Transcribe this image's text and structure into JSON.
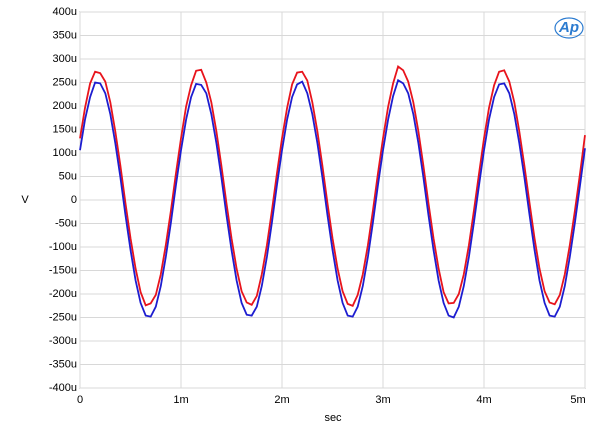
{
  "chart_data": {
    "type": "line",
    "logo": "Ap",
    "xlabel": "sec",
    "ylabel": "V",
    "x": [
      0,
      5e-05,
      0.0001,
      0.00015,
      0.0002,
      0.00025,
      0.0003,
      0.00035,
      0.0004,
      0.00045,
      0.0005,
      0.00055,
      0.0006,
      0.00065,
      0.0007,
      0.00075,
      0.0008,
      0.00085,
      0.0009,
      0.00095,
      0.001,
      0.00105,
      0.0011,
      0.00115,
      0.0012,
      0.00125,
      0.0013,
      0.00135,
      0.0014,
      0.00145,
      0.0015,
      0.00155,
      0.0016,
      0.00165,
      0.0017,
      0.00175,
      0.0018,
      0.00185,
      0.0019,
      0.00195,
      0.002,
      0.00205,
      0.0021,
      0.00215,
      0.0022,
      0.00225,
      0.0023,
      0.00235,
      0.0024,
      0.00245,
      0.0025,
      0.00255,
      0.0026,
      0.00265,
      0.0027,
      0.00275,
      0.0028,
      0.00285,
      0.0029,
      0.00295,
      0.003,
      0.00305,
      0.0031,
      0.00315,
      0.0032,
      0.00325,
      0.0033,
      0.00335,
      0.0034,
      0.00345,
      0.0035,
      0.00355,
      0.0036,
      0.00365,
      0.0037,
      0.00375,
      0.0038,
      0.00385,
      0.0039,
      0.00395,
      0.004,
      0.00405,
      0.0041,
      0.00415,
      0.0042,
      0.00425,
      0.0043,
      0.00435,
      0.0044,
      0.00445,
      0.0045,
      0.00455,
      0.0046,
      0.00465,
      0.0047,
      0.00475,
      0.0048,
      0.00485,
      0.0049,
      0.00495,
      0.005
    ],
    "series": [
      {
        "color": "#e8141c",
        "values": [
          0.000131,
          0.000196,
          0.000248,
          0.000273,
          0.00027,
          0.000252,
          0.000208,
          0.000146,
          7.3e-05,
          -6e-06,
          -8.1e-05,
          -0.000146,
          -0.000196,
          -0.000224,
          -0.00022,
          -0.000202,
          -0.000158,
          -9.6e-05,
          -2.3e-05,
          5.6e-05,
          0.000131,
          0.000199,
          0.000244,
          0.000275,
          0.000277,
          0.00025,
          0.000208,
          0.000146,
          7.3e-05,
          -6e-06,
          -8.1e-05,
          -0.000146,
          -0.000194,
          -0.000218,
          -0.000223,
          -0.000204,
          -0.000158,
          -9.6e-05,
          -2.3e-05,
          5.6e-05,
          0.000131,
          0.000196,
          0.000246,
          0.000271,
          0.000273,
          0.000254,
          0.000208,
          0.000146,
          7.3e-05,
          -6e-06,
          -8.1e-05,
          -0.000146,
          -0.000194,
          -0.000221,
          -0.000225,
          -0.000202,
          -0.000158,
          -9.6e-05,
          -2.3e-05,
          5.6e-05,
          0.000131,
          0.000198,
          0.000248,
          0.000284,
          0.000276,
          0.000252,
          0.000208,
          0.000146,
          7.3e-05,
          -6e-06,
          -8.1e-05,
          -0.000146,
          -0.000196,
          -0.00022,
          -0.000219,
          -0.0002,
          -0.000158,
          -9.6e-05,
          -2.3e-05,
          5.6e-05,
          0.000131,
          0.000196,
          0.000244,
          0.000273,
          0.000276,
          0.000252,
          0.000208,
          0.000146,
          7.3e-05,
          -6e-06,
          -8.1e-05,
          -0.000146,
          -0.000194,
          -0.000218,
          -0.000222,
          -0.000202,
          -0.000158,
          -9.6e-05,
          -2.3e-05,
          5.6e-05,
          0.000138
        ]
      },
      {
        "color": "#1d1dd0",
        "values": [
          0.000106,
          0.000171,
          0.000219,
          0.00025,
          0.000248,
          0.000227,
          0.000183,
          0.000121,
          4.8e-05,
          -3.1e-05,
          -0.000106,
          -0.000171,
          -0.000219,
          -0.000246,
          -0.000248,
          -0.000227,
          -0.000183,
          -0.000121,
          -4.8e-05,
          3.1e-05,
          0.000106,
          0.000171,
          0.000219,
          0.000247,
          0.000245,
          0.000227,
          0.000183,
          0.000121,
          4.8e-05,
          -3.1e-05,
          -0.000106,
          -0.000171,
          -0.000219,
          -0.000244,
          -0.000246,
          -0.000227,
          -0.000183,
          -0.000121,
          -4.8e-05,
          3.1e-05,
          0.000106,
          0.000171,
          0.000219,
          0.000246,
          0.000252,
          0.000227,
          0.000183,
          0.000121,
          4.8e-05,
          -3.1e-05,
          -0.000106,
          -0.000171,
          -0.000219,
          -0.000246,
          -0.000248,
          -0.000227,
          -0.000183,
          -0.000121,
          -4.8e-05,
          3.1e-05,
          0.000106,
          0.000171,
          0.000221,
          0.000255,
          0.000248,
          0.000227,
          0.000183,
          0.000121,
          4.8e-05,
          -3.1e-05,
          -0.000106,
          -0.000171,
          -0.000219,
          -0.000246,
          -0.00025,
          -0.000227,
          -0.000183,
          -0.000121,
          -4.8e-05,
          3.1e-05,
          0.000106,
          0.000171,
          0.000219,
          0.000246,
          0.000248,
          0.000227,
          0.000183,
          0.000121,
          4.8e-05,
          -3.1e-05,
          -0.000106,
          -0.000171,
          -0.000219,
          -0.000246,
          -0.000248,
          -0.000227,
          -0.000183,
          -0.000121,
          -4.8e-05,
          3.1e-05,
          0.00011
        ]
      }
    ],
    "xlim": [
      0,
      0.005
    ],
    "xticks": [
      0,
      {
        "value": 0.001,
        "label": "1m"
      },
      {
        "value": 0.002,
        "label": "2m"
      },
      {
        "value": 0.003,
        "label": "3m"
      },
      {
        "value": 0.004,
        "label": "4m"
      },
      {
        "value": 0.005,
        "label": "5m"
      }
    ],
    "ylim": [
      -0.0004,
      0.0004
    ],
    "yticks": [
      {
        "value": 0.0004,
        "label": "400u"
      },
      {
        "value": 0.00035,
        "label": "350u"
      },
      {
        "value": 0.0003,
        "label": "300u"
      },
      {
        "value": 0.00025,
        "label": "250u"
      },
      {
        "value": 0.0002,
        "label": "200u"
      },
      {
        "value": 0.00015,
        "label": "150u"
      },
      {
        "value": 0.0001,
        "label": "100u"
      },
      {
        "value": 5e-05,
        "label": "50u"
      },
      0,
      {
        "value": -5e-05,
        "label": "-50u"
      },
      {
        "value": -0.0001,
        "label": "-100u"
      },
      {
        "value": -0.00015,
        "label": "-150u"
      },
      {
        "value": -0.0002,
        "label": "-200u"
      },
      {
        "value": -0.00025,
        "label": "-250u"
      },
      {
        "value": -0.0003,
        "label": "-300u"
      },
      {
        "value": -0.00035,
        "label": "-350u"
      },
      {
        "value": -0.0004,
        "label": "-400u"
      }
    ],
    "grid": true
  }
}
